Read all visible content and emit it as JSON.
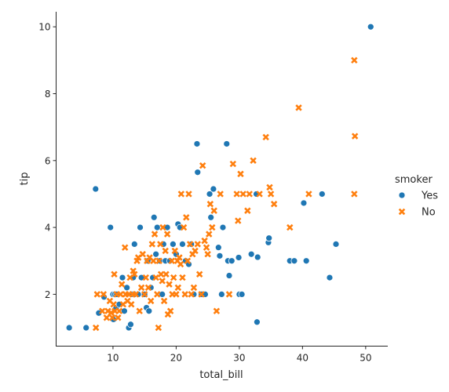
{
  "colors": {
    "yes": "#1f77b4",
    "no": "#ff7f0e",
    "axis": "#262626"
  },
  "chart_data": {
    "type": "scatter",
    "xlabel": "total_bill",
    "ylabel": "tip",
    "xlim": [
      1,
      53.5
    ],
    "ylim": [
      0.45,
      10.45
    ],
    "xticks": [
      10,
      20,
      30,
      40,
      50
    ],
    "yticks": [
      2,
      4,
      6,
      8,
      10
    ],
    "grid": false,
    "legend": {
      "title": "smoker",
      "placement": "right"
    },
    "series": [
      {
        "name": "Yes",
        "marker": "circle",
        "points": [
          [
            3.07,
            1.0
          ],
          [
            5.75,
            1.0
          ],
          [
            7.25,
            5.15
          ],
          [
            7.75,
            1.44
          ],
          [
            8.58,
            1.92
          ],
          [
            9.6,
            4.0
          ],
          [
            10.07,
            1.25
          ],
          [
            10.0,
            2.0
          ],
          [
            10.3,
            2.0
          ],
          [
            10.6,
            2.0
          ],
          [
            10.5,
            1.6
          ],
          [
            11.0,
            1.7
          ],
          [
            11.5,
            2.5
          ],
          [
            11.8,
            1.5
          ],
          [
            12.2,
            2.2
          ],
          [
            12.5,
            1.0
          ],
          [
            12.8,
            1.1
          ],
          [
            13.0,
            2.0
          ],
          [
            13.2,
            2.5
          ],
          [
            13.4,
            3.5
          ],
          [
            13.5,
            2.0
          ],
          [
            14.0,
            2.0
          ],
          [
            14.3,
            4.0
          ],
          [
            14.5,
            2.5
          ],
          [
            15.0,
            2.0
          ],
          [
            15.3,
            1.6
          ],
          [
            15.5,
            3.0
          ],
          [
            15.7,
            1.5
          ],
          [
            16.0,
            2.2
          ],
          [
            16.3,
            2.5
          ],
          [
            16.5,
            4.3
          ],
          [
            16.8,
            3.2
          ],
          [
            17.0,
            4.0
          ],
          [
            17.4,
            3.0
          ],
          [
            17.8,
            2.0
          ],
          [
            18.0,
            3.5
          ],
          [
            18.3,
            3.0
          ],
          [
            18.6,
            4.0
          ],
          [
            19.0,
            3.0
          ],
          [
            19.5,
            3.5
          ],
          [
            20.0,
            3.2
          ],
          [
            20.3,
            4.1
          ],
          [
            20.6,
            4.0
          ],
          [
            21.0,
            3.5
          ],
          [
            21.5,
            3.0
          ],
          [
            22.0,
            2.9
          ],
          [
            22.4,
            3.5
          ],
          [
            22.8,
            2.0
          ],
          [
            23.3,
            6.5
          ],
          [
            23.4,
            5.65
          ],
          [
            24.0,
            2.0
          ],
          [
            24.6,
            2.0
          ],
          [
            25.3,
            5.0
          ],
          [
            25.5,
            4.3
          ],
          [
            25.9,
            5.15
          ],
          [
            26.7,
            3.4
          ],
          [
            26.9,
            3.15
          ],
          [
            27.2,
            2.0
          ],
          [
            27.4,
            4.0
          ],
          [
            28.0,
            6.5
          ],
          [
            28.2,
            3.0
          ],
          [
            28.4,
            2.56
          ],
          [
            28.8,
            3.0
          ],
          [
            29.9,
            3.1
          ],
          [
            30.0,
            2.0
          ],
          [
            30.4,
            2.0
          ],
          [
            31.9,
            3.2
          ],
          [
            32.7,
            5.0
          ],
          [
            32.8,
            1.17
          ],
          [
            32.9,
            3.11
          ],
          [
            34.6,
            3.55
          ],
          [
            34.7,
            3.68
          ],
          [
            38.0,
            3.0
          ],
          [
            38.7,
            3.0
          ],
          [
            40.2,
            4.73
          ],
          [
            40.6,
            3.0
          ],
          [
            43.1,
            5.0
          ],
          [
            44.3,
            2.5
          ],
          [
            45.3,
            3.5
          ],
          [
            50.8,
            10.0
          ]
        ]
      },
      {
        "name": "No",
        "marker": "x",
        "points": [
          [
            7.3,
            1.0
          ],
          [
            7.5,
            2.0
          ],
          [
            8.3,
            1.5
          ],
          [
            8.5,
            2.0
          ],
          [
            9.0,
            1.3
          ],
          [
            9.2,
            1.5
          ],
          [
            9.5,
            1.8
          ],
          [
            9.7,
            1.45
          ],
          [
            9.9,
            1.3
          ],
          [
            10.1,
            1.7
          ],
          [
            10.2,
            2.6
          ],
          [
            10.3,
            1.5
          ],
          [
            10.6,
            2.0
          ],
          [
            10.8,
            1.3
          ],
          [
            11.0,
            1.5
          ],
          [
            11.2,
            2.0
          ],
          [
            11.4,
            2.3
          ],
          [
            11.6,
            1.7
          ],
          [
            11.9,
            3.4
          ],
          [
            12.0,
            2.0
          ],
          [
            12.3,
            1.8
          ],
          [
            12.5,
            2.0
          ],
          [
            12.7,
            2.5
          ],
          [
            12.9,
            1.7
          ],
          [
            13.1,
            2.0
          ],
          [
            13.2,
            2.7
          ],
          [
            13.4,
            2.6
          ],
          [
            13.6,
            2.0
          ],
          [
            13.8,
            3.0
          ],
          [
            14.0,
            3.1
          ],
          [
            14.2,
            1.5
          ],
          [
            14.5,
            2.2
          ],
          [
            14.7,
            3.2
          ],
          [
            15.0,
            2.0
          ],
          [
            15.2,
            2.5
          ],
          [
            15.4,
            3.0
          ],
          [
            15.6,
            2.2
          ],
          [
            15.8,
            3.1
          ],
          [
            16.0,
            1.8
          ],
          [
            16.2,
            3.5
          ],
          [
            16.4,
            3.0
          ],
          [
            16.6,
            3.8
          ],
          [
            16.8,
            2.5
          ],
          [
            17.0,
            2.0
          ],
          [
            17.2,
            1.0
          ],
          [
            17.3,
            3.0
          ],
          [
            17.5,
            3.5
          ],
          [
            17.6,
            2.6
          ],
          [
            17.8,
            2.4
          ],
          [
            17.9,
            4.0
          ],
          [
            18.1,
            1.8
          ],
          [
            18.3,
            3.3
          ],
          [
            18.4,
            2.6
          ],
          [
            18.6,
            3.8
          ],
          [
            18.7,
            1.4
          ],
          [
            18.9,
            2.3
          ],
          [
            19.1,
            1.5
          ],
          [
            19.3,
            3.0
          ],
          [
            19.4,
            2.0
          ],
          [
            19.6,
            2.5
          ],
          [
            19.8,
            3.3
          ],
          [
            20.0,
            2.0
          ],
          [
            20.2,
            3.0
          ],
          [
            20.3,
            2.2
          ],
          [
            20.5,
            3.1
          ],
          [
            20.7,
            2.9
          ],
          [
            20.8,
            5.0
          ],
          [
            21.0,
            2.5
          ],
          [
            21.2,
            4.0
          ],
          [
            21.4,
            2.0
          ],
          [
            21.6,
            4.3
          ],
          [
            21.8,
            3.0
          ],
          [
            22.0,
            5.0
          ],
          [
            22.2,
            3.5
          ],
          [
            22.4,
            2.0
          ],
          [
            22.6,
            3.2
          ],
          [
            22.8,
            2.2
          ],
          [
            23.0,
            3.3
          ],
          [
            23.4,
            3.5
          ],
          [
            23.7,
            2.6
          ],
          [
            24.0,
            2.0
          ],
          [
            24.2,
            5.85
          ],
          [
            24.5,
            3.6
          ],
          [
            24.8,
            3.4
          ],
          [
            25.0,
            3.2
          ],
          [
            25.2,
            3.8
          ],
          [
            25.4,
            4.7
          ],
          [
            25.7,
            4.0
          ],
          [
            26.0,
            4.5
          ],
          [
            26.4,
            1.5
          ],
          [
            27.0,
            5.0
          ],
          [
            28.4,
            2.0
          ],
          [
            29.0,
            5.9
          ],
          [
            29.6,
            5.0
          ],
          [
            29.8,
            4.2
          ],
          [
            30.2,
            5.6
          ],
          [
            30.6,
            5.0
          ],
          [
            31.3,
            4.5
          ],
          [
            31.6,
            5.0
          ],
          [
            32.2,
            6.0
          ],
          [
            33.2,
            5.0
          ],
          [
            34.2,
            6.7
          ],
          [
            34.8,
            5.2
          ],
          [
            35.0,
            5.0
          ],
          [
            35.5,
            4.7
          ],
          [
            38.0,
            4.0
          ],
          [
            39.4,
            7.58
          ],
          [
            41.0,
            5.0
          ],
          [
            48.2,
            9.0
          ],
          [
            48.3,
            6.73
          ],
          [
            48.2,
            5.0
          ]
        ]
      }
    ]
  }
}
